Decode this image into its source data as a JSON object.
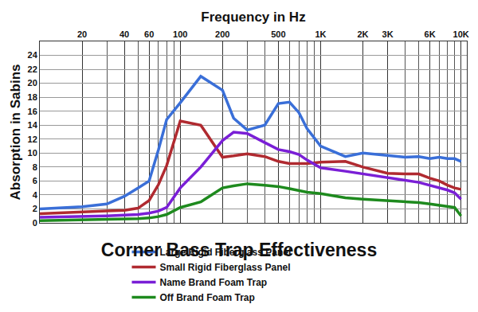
{
  "chart_data": {
    "type": "line",
    "title": "Corner Bass Trap Effectiveness",
    "x_label": "Frequency in Hz",
    "y_label": "Absorption in Sabins",
    "log": "x",
    "grid": true,
    "legend": "bottom",
    "x": [
      10,
      20,
      30,
      40,
      50,
      60,
      70,
      80,
      100,
      140,
      200,
      240,
      300,
      400,
      500,
      600,
      700,
      800,
      1000,
      1500,
      2000,
      3000,
      4000,
      5000,
      6000,
      7000,
      8000,
      9000,
      10000
    ],
    "xlim": [
      10,
      11000
    ],
    "xticks": [
      20,
      40,
      60,
      100,
      200,
      500,
      {
        "value": 1000,
        "label": "1K"
      },
      {
        "value": 2000,
        "label": "2K"
      },
      {
        "value": 3000,
        "label": "3K"
      },
      {
        "value": 6000,
        "label": "6K"
      },
      {
        "value": 10000,
        "label": "10K"
      }
    ],
    "ylim": [
      0,
      26
    ],
    "yticks": [
      0,
      2,
      4,
      6,
      8,
      10,
      12,
      14,
      16,
      18,
      20,
      22,
      24
    ],
    "series": [
      {
        "name": "Large Rigid Fiberglass Panel",
        "color": "#3a6fd8",
        "values": [
          2,
          2.3,
          2.7,
          3.8,
          5,
          6,
          10.5,
          14.8,
          17.2,
          21,
          19,
          15,
          13.3,
          14,
          17.1,
          17.3,
          15.8,
          13.5,
          11,
          9.5,
          10,
          9.6,
          9.4,
          9.5,
          9.2,
          9.4,
          9.2,
          9.2,
          8.8
        ]
      },
      {
        "name": "Small Rigid Fiberglass Panel",
        "color": "#b02a30",
        "values": [
          1.3,
          1.5,
          1.7,
          1.8,
          2.1,
          3.2,
          5.5,
          8.2,
          14.6,
          14,
          9.4,
          9.6,
          9.9,
          9.5,
          8.8,
          8.5,
          8.5,
          8.5,
          8.7,
          8.8,
          8,
          7.1,
          7,
          7,
          6.4,
          6,
          5.4,
          5,
          4.8
        ]
      },
      {
        "name": "Name Brand Foam Trap",
        "color": "#7a1fd6",
        "values": [
          0.8,
          0.9,
          1,
          1.1,
          1.2,
          1.4,
          1.7,
          2.2,
          5,
          8,
          11.8,
          13,
          12.8,
          11.5,
          10.5,
          10.2,
          9.8,
          9,
          7.9,
          7.4,
          7,
          6.4,
          6.1,
          5.8,
          5.4,
          5,
          4.7,
          4.3,
          3.4
        ]
      },
      {
        "name": "Off Brand Foam Trap",
        "color": "#1e8a1e",
        "values": [
          0.3,
          0.4,
          0.45,
          0.5,
          0.6,
          0.7,
          0.9,
          1.2,
          2.2,
          3,
          5,
          5.3,
          5.6,
          5.4,
          5.2,
          4.9,
          4.6,
          4.4,
          4.2,
          3.6,
          3.4,
          3.2,
          3,
          2.9,
          2.7,
          2.5,
          2.4,
          2.2,
          1
        ]
      }
    ]
  }
}
